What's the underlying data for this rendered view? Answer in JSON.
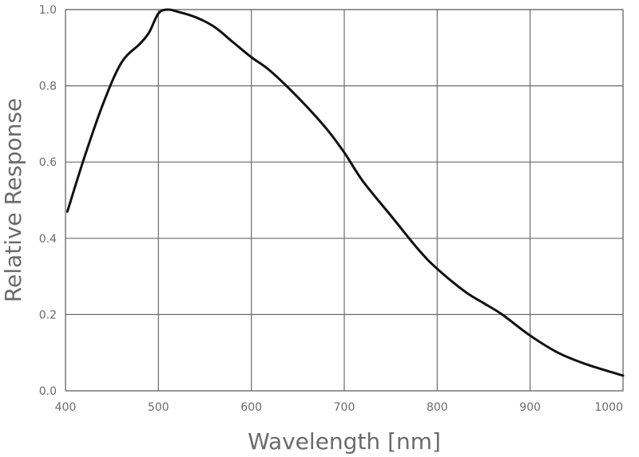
{
  "chart_data": {
    "type": "line",
    "title": "",
    "xlabel": "Wavelength [nm]",
    "ylabel": "Relative Response",
    "xlim": [
      400,
      1000
    ],
    "ylim": [
      0.0,
      1.0
    ],
    "x_ticks": [
      400,
      500,
      600,
      700,
      800,
      900,
      1000
    ],
    "y_ticks": [
      0.0,
      0.2,
      0.4,
      0.6,
      0.8,
      1.0
    ],
    "x_tick_labels": [
      "400",
      "500",
      "600",
      "700",
      "800",
      "900",
      "1000"
    ],
    "y_tick_labels": [
      "0.0",
      "0.2",
      "0.4",
      "0.6",
      "0.8",
      "1.0"
    ],
    "grid": true,
    "series": [
      {
        "color": "#111111",
        "x": [
          402,
          420,
          440,
          460,
          480,
          490,
          500,
          510,
          520,
          540,
          560,
          580,
          600,
          620,
          650,
          680,
          700,
          720,
          750,
          780,
          800,
          830,
          850,
          870,
          900,
          930,
          960,
          1000
        ],
        "y": [
          0.47,
          0.61,
          0.75,
          0.86,
          0.91,
          0.94,
          0.99,
          1.0,
          0.995,
          0.98,
          0.955,
          0.915,
          0.875,
          0.84,
          0.77,
          0.69,
          0.625,
          0.55,
          0.46,
          0.37,
          0.32,
          0.26,
          0.23,
          0.2,
          0.145,
          0.1,
          0.07,
          0.04
        ]
      }
    ]
  }
}
